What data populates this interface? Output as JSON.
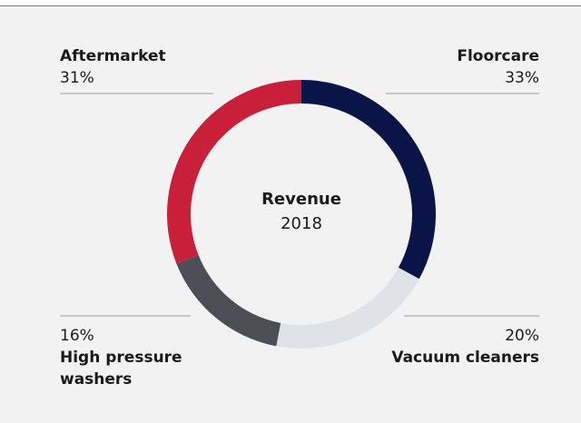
{
  "chart_data": {
    "type": "pie",
    "donut": true,
    "center_title": "Revenue",
    "center_subtitle": "2018",
    "categories": [
      "Floorcare",
      "Vacuum cleaners",
      "High pressure washers",
      "Aftermarket"
    ],
    "values": [
      33,
      20,
      16,
      31
    ],
    "value_labels": [
      "33%",
      "20%",
      "16%",
      "31%"
    ],
    "colors": [
      "#0b1446",
      "#dde3e6",
      "#4b4f55",
      "#c81f3b"
    ]
  }
}
